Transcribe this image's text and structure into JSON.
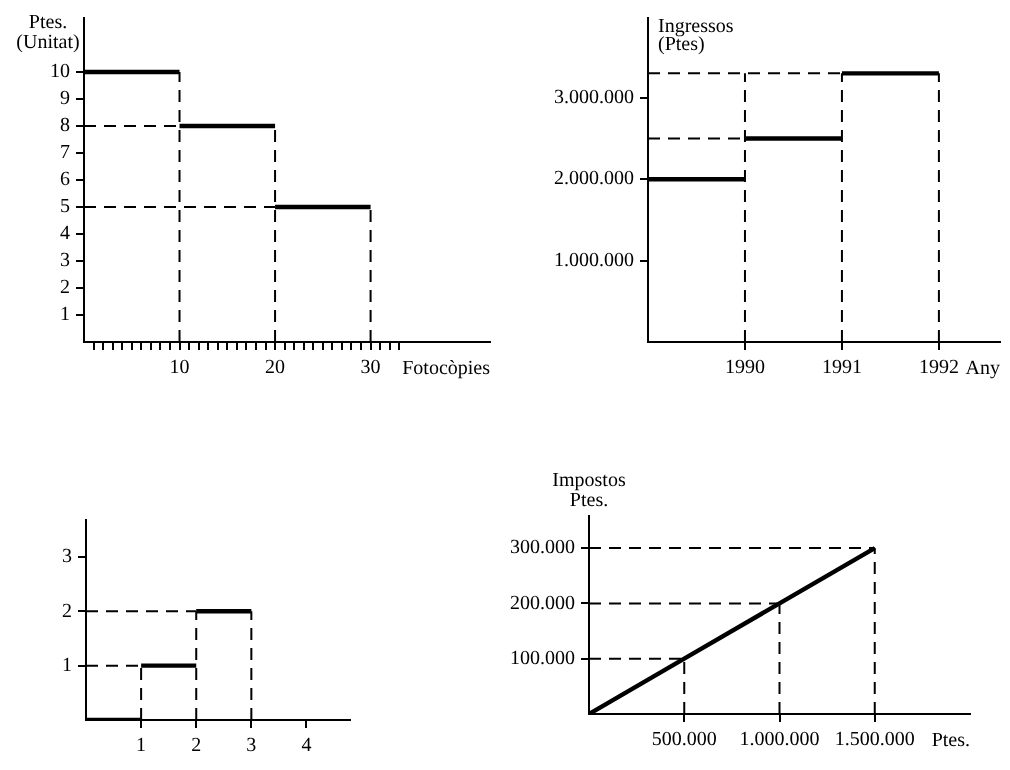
{
  "chart_data": [
    {
      "type": "line",
      "ylabel": "Ptes.\n(Unitat)",
      "xlabel": "Fotocòpies",
      "xlim": [
        0,
        42.5
      ],
      "ylim": [
        0,
        12
      ],
      "xticks": [
        {
          "value": 1,
          "label": null
        },
        {
          "value": 2,
          "label": null
        },
        {
          "value": 3,
          "label": null
        },
        {
          "value": 4,
          "label": null
        },
        {
          "value": 5,
          "label": null
        },
        {
          "value": 6,
          "label": null
        },
        {
          "value": 7,
          "label": null
        },
        {
          "value": 8,
          "label": null
        },
        {
          "value": 9,
          "label": null
        },
        10,
        {
          "value": 11,
          "label": null
        },
        {
          "value": 12,
          "label": null
        },
        {
          "value": 13,
          "label": null
        },
        {
          "value": 14,
          "label": null
        },
        {
          "value": 15,
          "label": null
        },
        {
          "value": 16,
          "label": null
        },
        {
          "value": 17,
          "label": null
        },
        {
          "value": 18,
          "label": null
        },
        {
          "value": 19,
          "label": null
        },
        20,
        {
          "value": 21,
          "label": null
        },
        {
          "value": 22,
          "label": null
        },
        {
          "value": 23,
          "label": null
        },
        {
          "value": 24,
          "label": null
        },
        {
          "value": 25,
          "label": null
        },
        {
          "value": 26,
          "label": null
        },
        {
          "value": 27,
          "label": null
        },
        {
          "value": 28,
          "label": null
        },
        {
          "value": 29,
          "label": null
        },
        30,
        {
          "value": 31,
          "label": null
        },
        {
          "value": 32,
          "label": null
        },
        {
          "value": 33,
          "label": null
        }
      ],
      "yticks": [
        1,
        2,
        3,
        4,
        5,
        6,
        7,
        8,
        9,
        10
      ],
      "legend": false,
      "marker": "none",
      "series": [
        {
          "color": "#000000",
          "line_style": "solid",
          "x": [
            0,
            10
          ],
          "values": [
            10,
            10
          ]
        },
        {
          "color": "#000000",
          "line_style": "solid",
          "x": [
            10,
            20
          ],
          "values": [
            8,
            8
          ]
        },
        {
          "color": "#000000",
          "line_style": "solid",
          "x": [
            20,
            30
          ],
          "values": [
            5,
            5
          ]
        },
        {
          "color": "#000000",
          "line_style": "dashed",
          "x": [
            0,
            10
          ],
          "values": [
            8,
            8
          ]
        },
        {
          "color": "#000000",
          "line_style": "dashed",
          "x": [
            0,
            20
          ],
          "values": [
            5,
            5
          ]
        },
        {
          "color": "#000000",
          "line_style": "dashed",
          "x": [
            10,
            10
          ],
          "values": [
            0,
            10
          ]
        },
        {
          "color": "#000000",
          "line_style": "dashed",
          "x": [
            20,
            20
          ],
          "values": [
            0,
            8
          ]
        },
        {
          "color": "#000000",
          "line_style": "dashed",
          "x": [
            30,
            30
          ],
          "values": [
            0,
            5
          ]
        }
      ]
    },
    {
      "type": "line",
      "ylabel": "Ingressos\n(Ptes)",
      "xlabel": "Any",
      "xlim": [
        1989,
        1992.63
      ],
      "ylim": [
        0,
        3980000
      ],
      "xticks": [
        1990,
        1991,
        1992
      ],
      "yticks": [
        {
          "value": 1000000,
          "label": "1.000.000"
        },
        {
          "value": 2000000,
          "label": "2.000.000"
        },
        {
          "value": 3000000,
          "label": "3.000.000"
        }
      ],
      "legend": false,
      "marker": "none",
      "series": [
        {
          "color": "#000000",
          "line_style": "solid",
          "x": [
            1989,
            1990
          ],
          "values": [
            2000000,
            2000000
          ]
        },
        {
          "color": "#000000",
          "line_style": "solid",
          "x": [
            1990,
            1991
          ],
          "values": [
            2500000,
            2500000
          ]
        },
        {
          "color": "#000000",
          "line_style": "solid",
          "x": [
            1991,
            1992
          ],
          "values": [
            3300000,
            3300000
          ]
        },
        {
          "color": "#000000",
          "line_style": "dashed",
          "x": [
            1989,
            1990
          ],
          "values": [
            2500000,
            2500000
          ]
        },
        {
          "color": "#000000",
          "line_style": "dashed",
          "x": [
            1989,
            1991
          ],
          "values": [
            3300000,
            3300000
          ]
        },
        {
          "color": "#000000",
          "line_style": "dashed",
          "x": [
            1990,
            1990
          ],
          "values": [
            0,
            3300000
          ]
        },
        {
          "color": "#000000",
          "line_style": "dashed",
          "x": [
            1991,
            1991
          ],
          "values": [
            0,
            3300000
          ]
        },
        {
          "color": "#000000",
          "line_style": "dashed",
          "x": [
            1992,
            1992
          ],
          "values": [
            0,
            3300000
          ]
        }
      ]
    },
    {
      "type": "line",
      "xlim": [
        0,
        4.79
      ],
      "ylim": [
        0,
        3.68
      ],
      "xticks": [
        1,
        2,
        3,
        4
      ],
      "yticks": [
        1,
        2,
        3
      ],
      "legend": false,
      "marker": "none",
      "series": [
        {
          "color": "#000000",
          "line_style": "solid",
          "x": [
            0,
            1
          ],
          "values": [
            0,
            0
          ]
        },
        {
          "color": "#000000",
          "line_style": "solid",
          "x": [
            1,
            2
          ],
          "values": [
            1,
            1
          ]
        },
        {
          "color": "#000000",
          "line_style": "solid",
          "x": [
            2,
            3
          ],
          "values": [
            2,
            2
          ]
        },
        {
          "color": "#000000",
          "line_style": "dashed",
          "x": [
            0,
            1
          ],
          "values": [
            1,
            1
          ]
        },
        {
          "color": "#000000",
          "line_style": "dashed",
          "x": [
            0,
            2
          ],
          "values": [
            2,
            2
          ]
        },
        {
          "color": "#000000",
          "line_style": "dashed",
          "x": [
            1,
            1
          ],
          "values": [
            0,
            1
          ]
        },
        {
          "color": "#000000",
          "line_style": "dashed",
          "x": [
            2,
            2
          ],
          "values": [
            0,
            2
          ]
        },
        {
          "color": "#000000",
          "line_style": "dashed",
          "x": [
            3,
            3
          ],
          "values": [
            0,
            2
          ]
        }
      ]
    },
    {
      "type": "line",
      "ylabel": "Impostos\nPtes.",
      "xlabel": "Ptes.",
      "xlim": [
        0,
        2000000
      ],
      "ylim": [
        0,
        358000
      ],
      "xticks": [
        {
          "value": 500000,
          "label": "500.000"
        },
        {
          "value": 1000000,
          "label": "1.000.000"
        },
        {
          "value": 1500000,
          "label": "1.500.000"
        }
      ],
      "yticks": [
        {
          "value": 100000,
          "label": "100.000"
        },
        {
          "value": 200000,
          "label": "200.000"
        },
        {
          "value": 300000,
          "label": "300.000"
        }
      ],
      "legend": false,
      "marker": "none",
      "series": [
        {
          "color": "#000000",
          "line_style": "solid",
          "x": [
            0,
            500000,
            1000000,
            1500000
          ],
          "values": [
            0,
            100000,
            200000,
            300000
          ]
        },
        {
          "color": "#000000",
          "line_style": "dashed",
          "x": [
            0,
            500000
          ],
          "values": [
            100000,
            100000
          ]
        },
        {
          "color": "#000000",
          "line_style": "dashed",
          "x": [
            0,
            1000000
          ],
          "values": [
            200000,
            200000
          ]
        },
        {
          "color": "#000000",
          "line_style": "dashed",
          "x": [
            0,
            1500000
          ],
          "values": [
            300000,
            300000
          ]
        },
        {
          "color": "#000000",
          "line_style": "dashed",
          "x": [
            500000,
            500000
          ],
          "values": [
            0,
            100000
          ]
        },
        {
          "color": "#000000",
          "line_style": "dashed",
          "x": [
            1000000,
            1000000
          ],
          "values": [
            0,
            200000
          ]
        },
        {
          "color": "#000000",
          "line_style": "dashed",
          "x": [
            1500000,
            1500000
          ],
          "values": [
            0,
            300000
          ]
        }
      ]
    }
  ]
}
